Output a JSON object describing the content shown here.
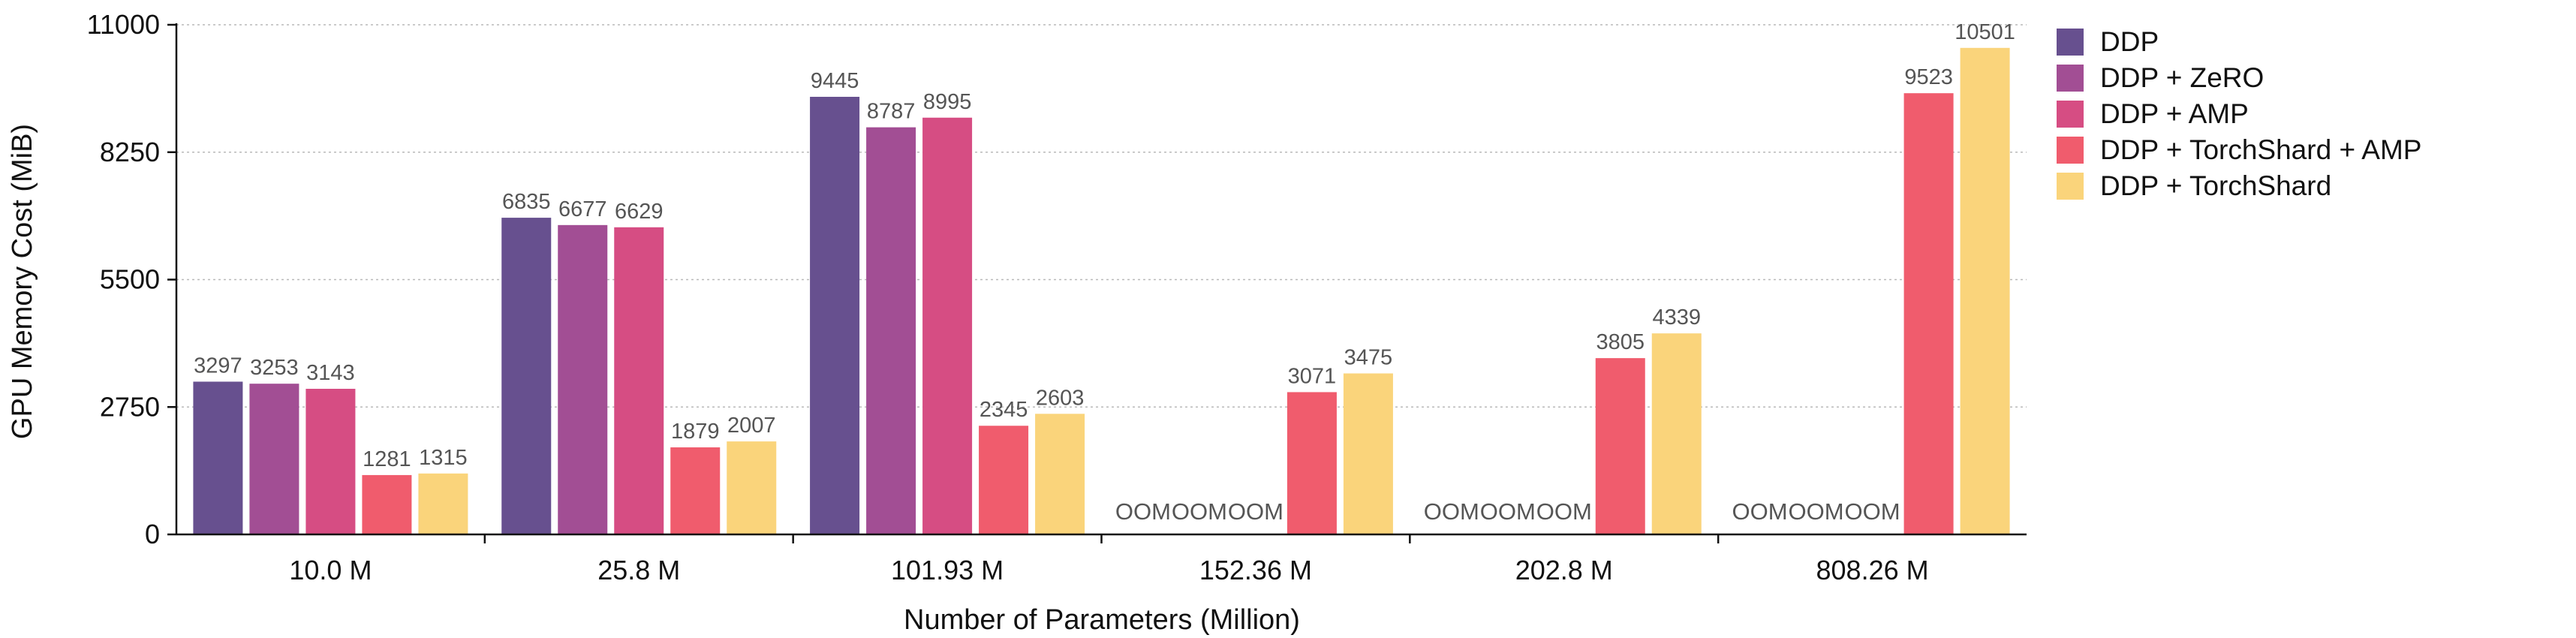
{
  "chart_data": {
    "type": "bar",
    "title": "",
    "xlabel": "Number of Parameters (Million)",
    "ylabel": "GPU Memory Cost (MiB)",
    "ylim": [
      0,
      11000
    ],
    "yticks": [
      0,
      2750,
      5500,
      8250,
      11000
    ],
    "grid": true,
    "legend_position": "right",
    "categories": [
      "10.0 M",
      "25.8 M",
      "101.93 M",
      "152.36 M",
      "202.8 M",
      "808.26 M"
    ],
    "oom_label": "OOM",
    "series": [
      {
        "name": "DDP",
        "color": "#67508f",
        "values": [
          3297,
          6835,
          9445,
          null,
          null,
          null
        ],
        "labels": [
          "3297",
          "6835",
          "9445",
          "OOM",
          "OOM",
          "OOM"
        ]
      },
      {
        "name": "DDP + ZeRO",
        "color": "#a24e94",
        "values": [
          3253,
          6677,
          8787,
          null,
          null,
          null
        ],
        "labels": [
          "3253",
          "6677",
          "8787",
          "OOM",
          "OOM",
          "OOM"
        ]
      },
      {
        "name": "DDP + AMP",
        "color": "#d64d83",
        "values": [
          3143,
          6629,
          8995,
          null,
          null,
          null
        ],
        "labels": [
          "3143",
          "6629",
          "8995",
          "OOM",
          "OOM",
          "OOM"
        ]
      },
      {
        "name": "DDP + TorchShard + AMP",
        "color": "#f05c6d",
        "values": [
          1281,
          1879,
          2345,
          3071,
          3805,
          9523
        ],
        "labels": [
          "1281",
          "1879",
          "2345",
          "3071",
          "3805",
          "9523"
        ]
      },
      {
        "name": "DDP + TorchShard",
        "color": "#fad47b",
        "values": [
          1315,
          2007,
          2603,
          3475,
          4339,
          10501
        ],
        "labels": [
          "1315",
          "2007",
          "2603",
          "3475",
          "4339",
          "10501"
        ]
      }
    ]
  }
}
